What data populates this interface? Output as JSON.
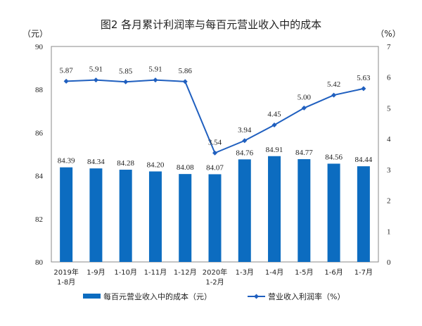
{
  "chart_data": {
    "type": "bar+line",
    "title": "图2  各月累计利润率与每百元营业收入中的成本",
    "left_unit": "（元）",
    "right_unit": "（%）",
    "categories": [
      "2019年\n1-8月",
      "1-9月",
      "1-10月",
      "1-11月",
      "1-12月",
      "2020年\n1-2月",
      "1-3月",
      "1-4月",
      "1-5月",
      "1-6月",
      "1-7月"
    ],
    "ylim_left": [
      80,
      90
    ],
    "yticks_left": [
      "80",
      "82",
      "84",
      "86",
      "88",
      "90"
    ],
    "ylim_right": [
      0,
      7
    ],
    "yticks_right": [
      "0",
      "1",
      "2",
      "3",
      "4",
      "5",
      "6",
      "7"
    ],
    "grid": false,
    "legend_position": "bottom",
    "series": [
      {
        "name": "每百元营业收入中的成本（元）",
        "type": "bar",
        "axis": "left",
        "color": "#0c6cc0",
        "values": [
          84.39,
          84.34,
          84.28,
          84.2,
          84.08,
          84.07,
          84.76,
          84.91,
          84.77,
          84.56,
          84.44
        ]
      },
      {
        "name": "营业收入利润率（%）",
        "type": "line",
        "axis": "right",
        "color": "#1f5fbf",
        "values": [
          5.87,
          5.91,
          5.85,
          5.91,
          5.86,
          3.54,
          3.94,
          4.45,
          5.0,
          5.42,
          5.63
        ]
      }
    ]
  }
}
